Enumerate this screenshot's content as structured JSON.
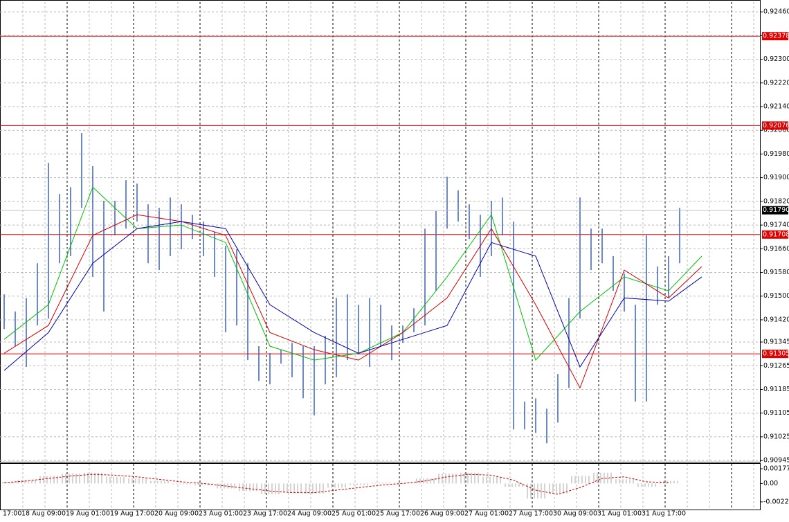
{
  "chart_data": [
    {
      "type": "hilo",
      "color": "#3a5fcd",
      "high": [
        0.91506,
        0.91448,
        0.91494,
        0.91611,
        0.9195,
        0.91845,
        0.91868,
        0.92051,
        0.91939,
        0.91822,
        0.91822,
        0.91892,
        0.9188,
        0.9181,
        0.91798,
        0.91833,
        0.9181,
        0.91775,
        0.91752,
        0.91717,
        0.9167,
        0.91658,
        0.91611,
        0.91331,
        0.91308,
        0.91319,
        0.91342,
        0.91331,
        0.91331,
        0.91366,
        0.91494,
        0.91506,
        0.91471,
        0.91494,
        0.91471,
        0.91401,
        0.91401,
        0.91459,
        0.91728,
        0.91787,
        0.91903,
        0.91857,
        0.9181,
        0.91775,
        0.91822,
        0.91833,
        0.91752,
        0.91144,
        0.91155,
        0.9112,
        0.91237,
        0.91494,
        0.91833,
        0.91728,
        0.91728,
        0.91635,
        0.91576,
        0.91471,
        0.91705,
        0.916,
        0.91635,
        0.91798
      ],
      "low": [
        0.91389,
        0.91331,
        0.91261,
        0.91401,
        0.91424,
        0.91611,
        0.91635,
        0.91798,
        0.91565,
        0.91448,
        0.91705,
        0.91728,
        0.91752,
        0.91611,
        0.91588,
        0.91635,
        0.91658,
        0.91693,
        0.91635,
        0.91565,
        0.91378,
        0.91401,
        0.91284,
        0.91214,
        0.91202,
        0.91272,
        0.91226,
        0.91155,
        0.91097,
        0.91202,
        0.91226,
        0.91284,
        0.91308,
        0.91261,
        0.91331,
        0.91284,
        0.91342,
        0.91378,
        0.91401,
        0.91518,
        0.91728,
        0.91752,
        0.91693,
        0.91565,
        0.91635,
        0.91705,
        0.9105,
        0.9105,
        0.91038,
        0.91003,
        0.91073,
        0.9119,
        0.91424,
        0.91588,
        0.91611,
        0.91518,
        0.91448,
        0.91144,
        0.91144,
        0.91471,
        0.91494,
        0.91611
      ],
      "series": [
        {
          "color": "#00c000",
          "x": [
            0,
            4,
            8,
            12,
            16,
            20,
            24,
            28,
            32,
            36,
            40,
            44,
            48,
            52,
            56,
            60,
            63
          ],
          "values": [
            0.91354,
            0.91471,
            0.91868,
            0.91728,
            0.9174,
            0.91681,
            0.91331,
            0.91284,
            0.91307,
            0.91377,
            0.91565,
            0.91775,
            0.91284,
            0.91448,
            0.91565,
            0.91518,
            0.91635
          ]
        },
        {
          "color": "#d00000",
          "x": [
            0,
            4,
            8,
            12,
            16,
            20,
            24,
            28,
            32,
            36,
            40,
            44,
            48,
            52,
            56,
            60,
            63
          ],
          "values": [
            0.91307,
            0.91401,
            0.91705,
            0.91775,
            0.91752,
            0.91705,
            0.91377,
            0.91319,
            0.91284,
            0.91377,
            0.91494,
            0.91728,
            0.91471,
            0.9119,
            0.91588,
            0.91494,
            0.916
          ]
        },
        {
          "color": "#0000b0",
          "x": [
            0,
            4,
            8,
            12,
            16,
            20,
            24,
            28,
            32,
            36,
            40,
            44,
            48,
            52,
            56,
            60,
            63
          ],
          "values": [
            0.91249,
            0.91377,
            0.91611,
            0.91728,
            0.91752,
            0.91728,
            0.91471,
            0.91377,
            0.91307,
            0.91354,
            0.91401,
            0.91681,
            0.91635,
            0.91261,
            0.91494,
            0.91483,
            0.91565
          ]
        }
      ],
      "levels": [
        0.92378,
        0.92076,
        0.91708,
        0.91305
      ],
      "level_color": "#e00000",
      "last_price": {
        "value": 0.9179,
        "label": "0.91790"
      },
      "ylim": [
        0.90943,
        0.92493
      ],
      "yticks": [
        {
          "value": 0.9246,
          "label": "0.92460"
        },
        {
          "value": 0.9238,
          "label": "0.92380"
        },
        {
          "value": 0.923,
          "label": "0.92300"
        },
        {
          "value": 0.9222,
          "label": "0.92220"
        },
        {
          "value": 0.9214,
          "label": "0.92140"
        },
        {
          "value": 0.9206,
          "label": "0.92060"
        },
        {
          "value": 0.9198,
          "label": "0.91980"
        },
        {
          "value": 0.919,
          "label": "0.91900"
        },
        {
          "value": 0.9182,
          "label": "0.91820"
        },
        {
          "value": 0.9174,
          "label": "0.91740"
        },
        {
          "value": 0.9166,
          "label": "0.91660"
        },
        {
          "value": 0.9158,
          "label": "0.91580"
        },
        {
          "value": 0.915,
          "label": "0.91500"
        },
        {
          "value": 0.9142,
          "label": "0.91420"
        },
        0.91345,
        0.91265,
        0.91185,
        0.91105,
        0.91025,
        0.90945
      ],
      "x_labels": [
        "17:00",
        "18 Aug 09:00",
        "19 Aug 01:00",
        "19 Aug 17:00",
        "20 Aug 09:00",
        "23 Aug 01:00",
        "23 Aug 17:00",
        "24 Aug 09:00",
        "25 Aug 01:00",
        "25 Aug 17:00",
        "26 Aug 09:00",
        "27 Aug 01:00",
        "27 Aug 17:00",
        "30 Aug 09:00",
        "31 Aug 01:00",
        "31 Aug 17:00"
      ]
    },
    {
      "type": "oscillator",
      "color": "#a8a8a8",
      "signal_color": "#d00000",
      "values": [
        0.0002,
        0.0004,
        0.0009,
        0.0012,
        0.0013,
        0.0008,
        0.0006,
        0.0003,
        -0.0001,
        -0.0002,
        -0.0006,
        -0.0009,
        -0.0013,
        -0.0011,
        -0.0012,
        -0.0005,
        -0.0002,
        0.0001,
        0.0001,
        0.0006,
        0.0012,
        0.0013,
        0.0008,
        -0.0004,
        -0.0018,
        -0.0012,
        0.0009,
        0.0013,
        0.0005,
        -0.0004,
        0.0003
      ],
      "signal": [
        0.0001,
        0.0003,
        0.0006,
        0.0009,
        0.0011,
        0.001,
        0.0008,
        0.0005,
        0.0002,
        0,
        -0.0003,
        -0.0006,
        -0.0009,
        -0.0011,
        -0.0011,
        -0.0008,
        -0.0005,
        -0.0002,
        0,
        0.0003,
        0.0008,
        0.0011,
        0.001,
        0.0004,
        -0.0008,
        -0.0013,
        -0.0005,
        0.0006,
        0.0008,
        0.0002,
        0.0001
      ],
      "ylim": [
        -0.00313,
        0.00236
      ],
      "yticks": [
        0.001774,
        {
          "value": 0,
          "label": "0.00"
        },
        -0.00221
      ]
    }
  ]
}
